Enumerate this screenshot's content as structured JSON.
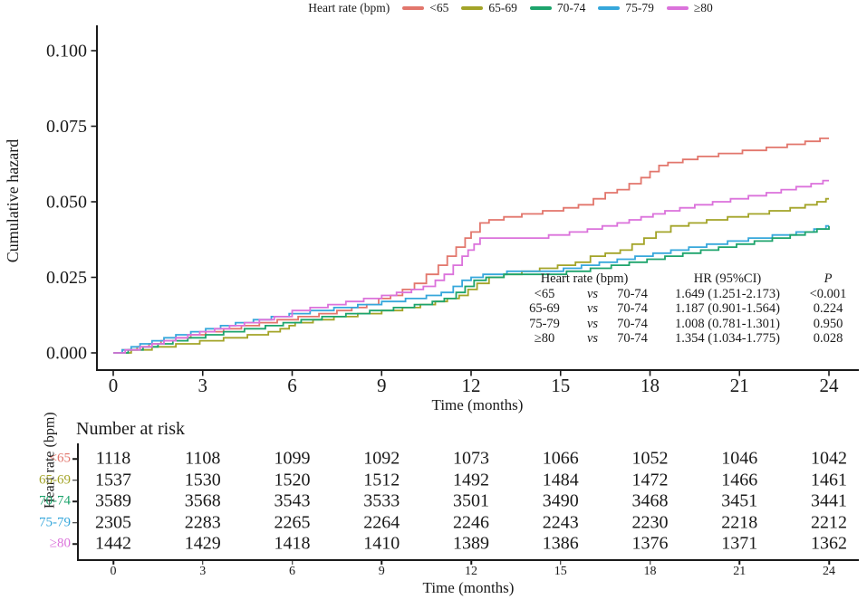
{
  "legend": {
    "title": "Heart rate (bpm)",
    "entries": [
      {
        "label": "<65",
        "color": "#E2766C"
      },
      {
        "label": "65-69",
        "color": "#A3A428"
      },
      {
        "label": "70-74",
        "color": "#1DA46C"
      },
      {
        "label": "75-79",
        "color": "#36A7DB"
      },
      {
        "label": "≥80",
        "color": "#DB72DB"
      }
    ]
  },
  "chart_data": {
    "type": "line",
    "subtype": "step-cumulative-hazard",
    "title": "",
    "xlabel": "Time (months)",
    "ylabel": "Cumulative hazard",
    "xlim": [
      0,
      24
    ],
    "ylim": [
      0,
      0.1
    ],
    "xticks": [
      0,
      3,
      6,
      9,
      12,
      15,
      18,
      21,
      24
    ],
    "ytick_labels": [
      "0.000",
      "0.025",
      "0.050",
      "0.075",
      "0.100"
    ],
    "yticks": [
      0,
      0.025,
      0.05,
      0.075,
      0.1
    ],
    "grid": false,
    "legend_position": "top",
    "series": [
      {
        "name": "<65",
        "color": "#E2766C",
        "points": [
          [
            0,
            0
          ],
          [
            0.3,
            0.001
          ],
          [
            0.8,
            0.002
          ],
          [
            1.2,
            0.003
          ],
          [
            1.6,
            0.004
          ],
          [
            2.1,
            0.005
          ],
          [
            2.6,
            0.006
          ],
          [
            3.1,
            0.007
          ],
          [
            3.7,
            0.008
          ],
          [
            4.3,
            0.009
          ],
          [
            4.9,
            0.01
          ],
          [
            5.5,
            0.011
          ],
          [
            6.2,
            0.012
          ],
          [
            6.9,
            0.013
          ],
          [
            7.5,
            0.014
          ],
          [
            8.0,
            0.015
          ],
          [
            8.5,
            0.016
          ],
          [
            8.9,
            0.018
          ],
          [
            9.3,
            0.019
          ],
          [
            9.7,
            0.021
          ],
          [
            10.1,
            0.023
          ],
          [
            10.5,
            0.026
          ],
          [
            10.9,
            0.029
          ],
          [
            11.2,
            0.032
          ],
          [
            11.5,
            0.035
          ],
          [
            11.8,
            0.038
          ],
          [
            12.0,
            0.04
          ],
          [
            12.3,
            0.043
          ],
          [
            12.6,
            0.044
          ],
          [
            13.1,
            0.045
          ],
          [
            13.7,
            0.046
          ],
          [
            14.4,
            0.047
          ],
          [
            15.1,
            0.048
          ],
          [
            15.6,
            0.049
          ],
          [
            16.1,
            0.051
          ],
          [
            16.5,
            0.053
          ],
          [
            16.9,
            0.054
          ],
          [
            17.3,
            0.056
          ],
          [
            17.7,
            0.058
          ],
          [
            18.0,
            0.06
          ],
          [
            18.3,
            0.062
          ],
          [
            18.6,
            0.063
          ],
          [
            19.1,
            0.064
          ],
          [
            19.6,
            0.065
          ],
          [
            20.3,
            0.066
          ],
          [
            21.1,
            0.067
          ],
          [
            21.9,
            0.068
          ],
          [
            22.6,
            0.069
          ],
          [
            23.2,
            0.07
          ],
          [
            23.7,
            0.071
          ],
          [
            24,
            0.071
          ]
        ]
      },
      {
        "name": "65-69",
        "color": "#A3A428",
        "points": [
          [
            0,
            0
          ],
          [
            0.6,
            0.001
          ],
          [
            1.3,
            0.002
          ],
          [
            2.1,
            0.003
          ],
          [
            2.9,
            0.004
          ],
          [
            3.7,
            0.005
          ],
          [
            4.5,
            0.006
          ],
          [
            5.2,
            0.007
          ],
          [
            5.6,
            0.008
          ],
          [
            5.9,
            0.009
          ],
          [
            6.1,
            0.01
          ],
          [
            6.7,
            0.011
          ],
          [
            7.4,
            0.012
          ],
          [
            8.2,
            0.013
          ],
          [
            9.0,
            0.014
          ],
          [
            9.7,
            0.015
          ],
          [
            10.3,
            0.016
          ],
          [
            10.8,
            0.017
          ],
          [
            11.2,
            0.018
          ],
          [
            11.6,
            0.019
          ],
          [
            11.9,
            0.021
          ],
          [
            12.2,
            0.023
          ],
          [
            12.6,
            0.025
          ],
          [
            13.1,
            0.026
          ],
          [
            13.7,
            0.027
          ],
          [
            14.3,
            0.028
          ],
          [
            14.9,
            0.029
          ],
          [
            15.5,
            0.03
          ],
          [
            16.0,
            0.032
          ],
          [
            16.5,
            0.033
          ],
          [
            17.0,
            0.034
          ],
          [
            17.4,
            0.036
          ],
          [
            17.8,
            0.038
          ],
          [
            18.2,
            0.04
          ],
          [
            18.7,
            0.042
          ],
          [
            19.3,
            0.043
          ],
          [
            19.9,
            0.044
          ],
          [
            20.6,
            0.045
          ],
          [
            21.3,
            0.046
          ],
          [
            22.0,
            0.047
          ],
          [
            22.7,
            0.048
          ],
          [
            23.2,
            0.049
          ],
          [
            23.6,
            0.05
          ],
          [
            23.9,
            0.051
          ],
          [
            24,
            0.051
          ]
        ]
      },
      {
        "name": "75-79",
        "color": "#36A7DB",
        "points": [
          [
            0,
            0
          ],
          [
            0.3,
            0.001
          ],
          [
            0.6,
            0.002
          ],
          [
            0.9,
            0.003
          ],
          [
            1.3,
            0.004
          ],
          [
            1.7,
            0.005
          ],
          [
            2.1,
            0.006
          ],
          [
            2.6,
            0.007
          ],
          [
            3.1,
            0.008
          ],
          [
            3.6,
            0.009
          ],
          [
            4.1,
            0.01
          ],
          [
            4.7,
            0.011
          ],
          [
            5.3,
            0.012
          ],
          [
            5.9,
            0.013
          ],
          [
            6.6,
            0.014
          ],
          [
            7.4,
            0.015
          ],
          [
            8.2,
            0.016
          ],
          [
            9.0,
            0.017
          ],
          [
            9.8,
            0.018
          ],
          [
            10.5,
            0.019
          ],
          [
            11.0,
            0.02
          ],
          [
            11.4,
            0.022
          ],
          [
            11.7,
            0.024
          ],
          [
            12.0,
            0.025
          ],
          [
            12.4,
            0.026
          ],
          [
            13.2,
            0.027
          ],
          [
            15.1,
            0.028
          ],
          [
            15.7,
            0.029
          ],
          [
            16.3,
            0.03
          ],
          [
            16.9,
            0.031
          ],
          [
            17.5,
            0.032
          ],
          [
            18.1,
            0.033
          ],
          [
            18.7,
            0.034
          ],
          [
            19.3,
            0.035
          ],
          [
            19.9,
            0.036
          ],
          [
            20.6,
            0.037
          ],
          [
            21.3,
            0.038
          ],
          [
            22.1,
            0.039
          ],
          [
            22.9,
            0.04
          ],
          [
            23.5,
            0.041
          ],
          [
            23.9,
            0.042
          ],
          [
            24,
            0.042
          ]
        ]
      },
      {
        "name": "70-74",
        "color": "#1DA46C",
        "points": [
          [
            0,
            0
          ],
          [
            0.5,
            0.001
          ],
          [
            1.0,
            0.002
          ],
          [
            1.5,
            0.003
          ],
          [
            2.0,
            0.004
          ],
          [
            2.5,
            0.005
          ],
          [
            3.1,
            0.006
          ],
          [
            3.7,
            0.007
          ],
          [
            4.4,
            0.008
          ],
          [
            5.1,
            0.009
          ],
          [
            5.7,
            0.01
          ],
          [
            6.3,
            0.011
          ],
          [
            7.0,
            0.012
          ],
          [
            7.8,
            0.013
          ],
          [
            8.6,
            0.014
          ],
          [
            9.4,
            0.015
          ],
          [
            10.1,
            0.016
          ],
          [
            10.7,
            0.017
          ],
          [
            11.1,
            0.018
          ],
          [
            11.5,
            0.02
          ],
          [
            11.8,
            0.022
          ],
          [
            12.1,
            0.024
          ],
          [
            12.5,
            0.025
          ],
          [
            13.1,
            0.026
          ],
          [
            15.2,
            0.027
          ],
          [
            16.0,
            0.028
          ],
          [
            16.7,
            0.029
          ],
          [
            17.3,
            0.03
          ],
          [
            17.9,
            0.031
          ],
          [
            18.5,
            0.032
          ],
          [
            19.1,
            0.033
          ],
          [
            19.7,
            0.034
          ],
          [
            20.3,
            0.035
          ],
          [
            20.9,
            0.036
          ],
          [
            21.5,
            0.037
          ],
          [
            22.1,
            0.038
          ],
          [
            22.7,
            0.039
          ],
          [
            23.2,
            0.04
          ],
          [
            23.6,
            0.041
          ],
          [
            24,
            0.042
          ]
        ]
      },
      {
        "name": "≥80",
        "color": "#DB72DB",
        "points": [
          [
            0,
            0
          ],
          [
            0.4,
            0.001
          ],
          [
            0.9,
            0.002
          ],
          [
            1.3,
            0.003
          ],
          [
            1.7,
            0.004
          ],
          [
            2.1,
            0.005
          ],
          [
            2.5,
            0.006
          ],
          [
            2.9,
            0.007
          ],
          [
            3.4,
            0.008
          ],
          [
            3.9,
            0.009
          ],
          [
            4.4,
            0.01
          ],
          [
            4.9,
            0.011
          ],
          [
            5.4,
            0.012
          ],
          [
            6.0,
            0.014
          ],
          [
            6.6,
            0.015
          ],
          [
            7.2,
            0.016
          ],
          [
            7.8,
            0.017
          ],
          [
            8.4,
            0.018
          ],
          [
            9.0,
            0.019
          ],
          [
            9.5,
            0.02
          ],
          [
            10.0,
            0.021
          ],
          [
            10.4,
            0.022
          ],
          [
            10.8,
            0.024
          ],
          [
            11.1,
            0.026
          ],
          [
            11.4,
            0.029
          ],
          [
            11.7,
            0.032
          ],
          [
            11.9,
            0.034
          ],
          [
            12.1,
            0.036
          ],
          [
            12.3,
            0.038
          ],
          [
            14.6,
            0.039
          ],
          [
            15.3,
            0.04
          ],
          [
            15.9,
            0.041
          ],
          [
            16.4,
            0.042
          ],
          [
            16.9,
            0.043
          ],
          [
            17.3,
            0.044
          ],
          [
            17.7,
            0.045
          ],
          [
            18.1,
            0.046
          ],
          [
            18.5,
            0.047
          ],
          [
            19.0,
            0.048
          ],
          [
            19.5,
            0.049
          ],
          [
            20.1,
            0.05
          ],
          [
            20.7,
            0.051
          ],
          [
            21.3,
            0.052
          ],
          [
            21.9,
            0.053
          ],
          [
            22.4,
            0.054
          ],
          [
            22.9,
            0.055
          ],
          [
            23.4,
            0.056
          ],
          [
            23.8,
            0.057
          ],
          [
            24,
            0.057
          ]
        ]
      }
    ]
  },
  "inset_table": {
    "header": {
      "group": "Heart rate (bpm)",
      "hr": "HR (95%CI)",
      "p": "P"
    },
    "rows": [
      {
        "group": "<65",
        "vs": "vs",
        "ref": "70-74",
        "hr": "1.649 (1.251-2.173)",
        "p": "<0.001"
      },
      {
        "group": "65-69",
        "vs": "vs",
        "ref": "70-74",
        "hr": "1.187 (0.901-1.564)",
        "p": "0.224"
      },
      {
        "group": "75-79",
        "vs": "vs",
        "ref": "70-74",
        "hr": "1.008 (0.781-1.301)",
        "p": "0.950"
      },
      {
        "group": "≥80",
        "vs": "vs",
        "ref": "70-74",
        "hr": "1.354 (1.034-1.775)",
        "p": "0.028"
      }
    ]
  },
  "risk_table": {
    "title": "Number at risk",
    "ylabel": "Heart rate (bpm)",
    "xlabel": "Time (months)",
    "timepoints": [
      0,
      3,
      6,
      9,
      12,
      15,
      18,
      21,
      24
    ],
    "rows": [
      {
        "label": "<65",
        "color": "#E2766C",
        "counts": [
          1118,
          1108,
          1099,
          1092,
          1073,
          1066,
          1052,
          1046,
          1042
        ]
      },
      {
        "label": "65-69",
        "color": "#A3A428",
        "counts": [
          1537,
          1530,
          1520,
          1512,
          1492,
          1484,
          1472,
          1466,
          1461
        ]
      },
      {
        "label": "70-74",
        "color": "#1DA46C",
        "counts": [
          3589,
          3568,
          3543,
          3533,
          3501,
          3490,
          3468,
          3451,
          3441
        ]
      },
      {
        "label": "75-79",
        "color": "#36A7DB",
        "counts": [
          2305,
          2283,
          2265,
          2264,
          2246,
          2243,
          2230,
          2218,
          2212
        ]
      },
      {
        "label": "≥80",
        "color": "#DB72DB",
        "counts": [
          1442,
          1429,
          1418,
          1410,
          1389,
          1386,
          1376,
          1371,
          1362
        ]
      }
    ]
  }
}
